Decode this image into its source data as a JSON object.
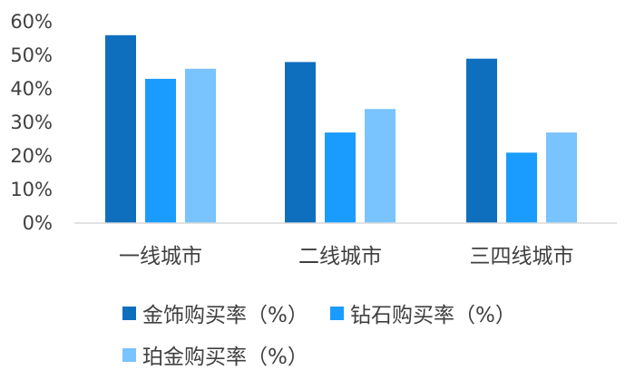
{
  "chart_data": {
    "type": "bar",
    "categories": [
      "一线城市",
      "二线城市",
      "三四线城市"
    ],
    "series": [
      {
        "name": "金饰购买率（%）",
        "values": [
          56,
          48,
          49
        ],
        "color": "#0F6FBF"
      },
      {
        "name": "钻石购买率（%）",
        "values": [
          43,
          27,
          21
        ],
        "color": "#1A9CFF"
      },
      {
        "name": "珀金购买率（%）",
        "values": [
          46,
          34,
          27
        ],
        "color": "#79C3FF"
      }
    ],
    "ylim": [
      0,
      60
    ],
    "yticks": [
      "0%",
      "10%",
      "20%",
      "30%",
      "40%",
      "50%",
      "60%"
    ],
    "grid": false,
    "legend_position": "bottom"
  }
}
